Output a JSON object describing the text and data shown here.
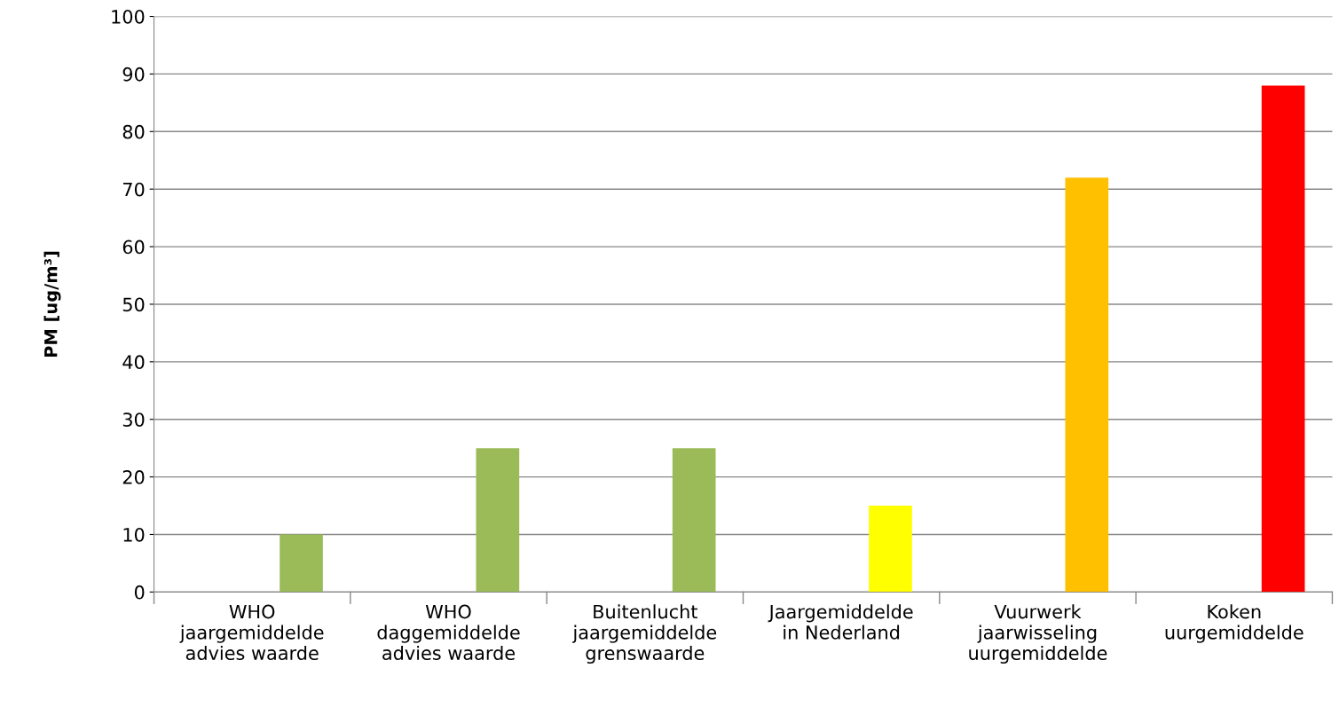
{
  "chart_data": {
    "type": "bar",
    "ylabel": "PM [ug/m³]",
    "categories": [
      "WHO\njaargemiddelde\nadvies waarde",
      "WHO\ndaggemiddelde\nadvies waarde",
      "Buitenlucht\njaargemiddelde\ngrenswaarde",
      "Jaargemiddelde\nin Nederland",
      "Vuurwerk\njaarwisseling\nuurgemiddelde",
      "Koken\nuurgemiddelde"
    ],
    "values": [
      10,
      25,
      25,
      15,
      72,
      88
    ],
    "colors": [
      "#9bbb59",
      "#9bbb59",
      "#9bbb59",
      "#ffff00",
      "#ffc000",
      "#ff0000"
    ],
    "ylim": [
      0,
      100
    ],
    "yticks": [
      0,
      10,
      20,
      30,
      40,
      50,
      60,
      70,
      80,
      90,
      100
    ],
    "grid": "y"
  }
}
